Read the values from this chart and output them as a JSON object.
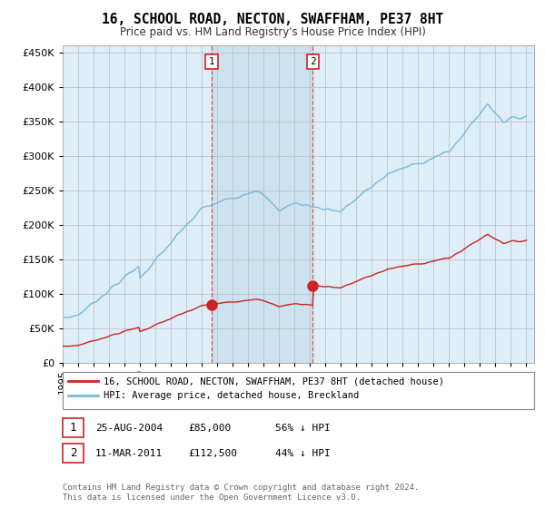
{
  "title": "16, SCHOOL ROAD, NECTON, SWAFFHAM, PE37 8HT",
  "subtitle": "Price paid vs. HM Land Registry's House Price Index (HPI)",
  "legend_line1": "16, SCHOOL ROAD, NECTON, SWAFFHAM, PE37 8HT (detached house)",
  "legend_line2": "HPI: Average price, detached house, Breckland",
  "footnote": "Contains HM Land Registry data © Crown copyright and database right 2024.\nThis data is licensed under the Open Government Licence v3.0.",
  "sale1_label": "1",
  "sale1_date": "25-AUG-2004",
  "sale1_price": "£85,000",
  "sale1_hpi": "56% ↓ HPI",
  "sale1_x": 2004.65,
  "sale1_y": 85000,
  "sale2_label": "2",
  "sale2_date": "11-MAR-2011",
  "sale2_price": "£112,500",
  "sale2_hpi": "44% ↓ HPI",
  "sale2_x": 2011.19,
  "sale2_y": 112500,
  "xmin": 1995,
  "xmax": 2025.5,
  "ymin": 0,
  "ymax": 460000,
  "yticks": [
    0,
    50000,
    100000,
    150000,
    200000,
    250000,
    300000,
    350000,
    400000,
    450000
  ],
  "xticks": [
    1995,
    1996,
    1997,
    1998,
    1999,
    2000,
    2001,
    2002,
    2003,
    2004,
    2005,
    2006,
    2007,
    2008,
    2009,
    2010,
    2011,
    2012,
    2013,
    2014,
    2015,
    2016,
    2017,
    2018,
    2019,
    2020,
    2021,
    2022,
    2023,
    2024,
    2025
  ],
  "hpi_color": "#7ab8d9",
  "sale_color": "#cc2222",
  "vline_color": "#dd4444",
  "grid_color": "#cccccc",
  "bg_color": "#ddeef8",
  "shade_color": "#c8dff0"
}
